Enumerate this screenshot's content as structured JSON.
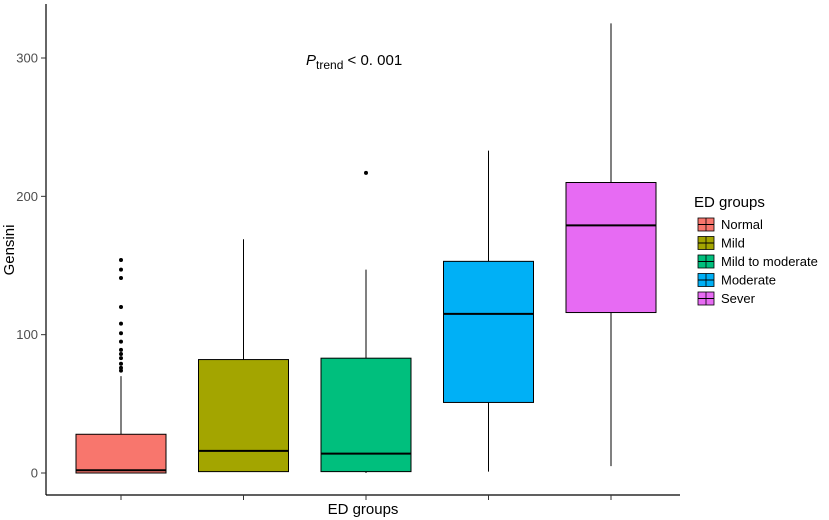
{
  "chart_data": {
    "type": "box",
    "ylabel": "Gensini",
    "xlabel": "ED groups",
    "ylim": [
      -15,
      340
    ],
    "yticks": [
      0,
      100,
      200,
      300
    ],
    "grid": false,
    "annotation": {
      "main": "P",
      "subscript": "trend",
      "rest": " < 0. 001"
    },
    "legend": {
      "title": "ED groups",
      "position": "right"
    },
    "series": [
      {
        "name": "Normal",
        "color": "#F8766D",
        "min": 0,
        "q1": 0,
        "median": 2,
        "q3": 28,
        "max": 70,
        "outliers": [
          74,
          76,
          79,
          83,
          86,
          89,
          95,
          101,
          108,
          120,
          141,
          147,
          154
        ]
      },
      {
        "name": "Mild",
        "color": "#A3A500",
        "min": 1,
        "q1": 1,
        "median": 16,
        "q3": 82,
        "max": 169,
        "outliers": []
      },
      {
        "name": "Mild to moderate",
        "color": "#00BF7D",
        "min": 0,
        "q1": 1,
        "median": 14,
        "q3": 83,
        "max": 147,
        "outliers": [
          217
        ]
      },
      {
        "name": "Moderate",
        "color": "#00B0F6",
        "min": 1,
        "q1": 51,
        "median": 115,
        "q3": 153,
        "max": 233,
        "outliers": []
      },
      {
        "name": "Sever",
        "color": "#E76BF3",
        "min": 5,
        "q1": 116,
        "median": 179,
        "q3": 210,
        "max": 325,
        "outliers": []
      }
    ]
  }
}
